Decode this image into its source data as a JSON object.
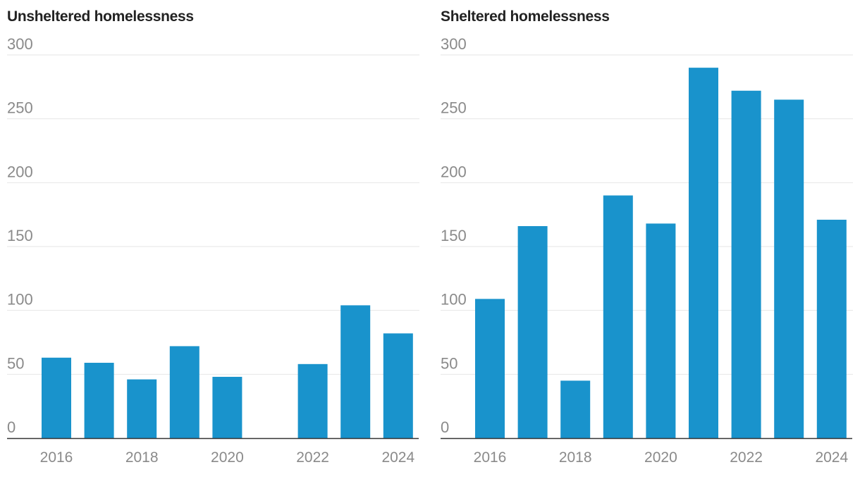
{
  "chart_data": [
    {
      "type": "bar",
      "title": "Unsheltered homelessness",
      "categories": [
        "2016",
        "2017",
        "2018",
        "2019",
        "2020",
        "2021",
        "2022",
        "2023",
        "2024"
      ],
      "values": [
        63,
        59,
        46,
        72,
        48,
        null,
        58,
        104,
        82
      ],
      "x_tick_labels": [
        "2016",
        "2018",
        "2020",
        "2022",
        "2024"
      ],
      "y_ticks": [
        0,
        50,
        100,
        150,
        200,
        250,
        300
      ],
      "ylim": [
        0,
        300
      ],
      "xlabel": "",
      "ylabel": "",
      "grid": true,
      "color": "#1993cc"
    },
    {
      "type": "bar",
      "title": "Sheltered homelessness",
      "categories": [
        "2016",
        "2017",
        "2018",
        "2019",
        "2020",
        "2021",
        "2022",
        "2023",
        "2024"
      ],
      "values": [
        109,
        166,
        45,
        190,
        168,
        290,
        272,
        265,
        171
      ],
      "x_tick_labels": [
        "2016",
        "2018",
        "2020",
        "2022",
        "2024"
      ],
      "y_ticks": [
        0,
        50,
        100,
        150,
        200,
        250,
        300
      ],
      "ylim": [
        0,
        300
      ],
      "xlabel": "",
      "ylabel": "",
      "grid": true,
      "color": "#1993cc"
    }
  ]
}
